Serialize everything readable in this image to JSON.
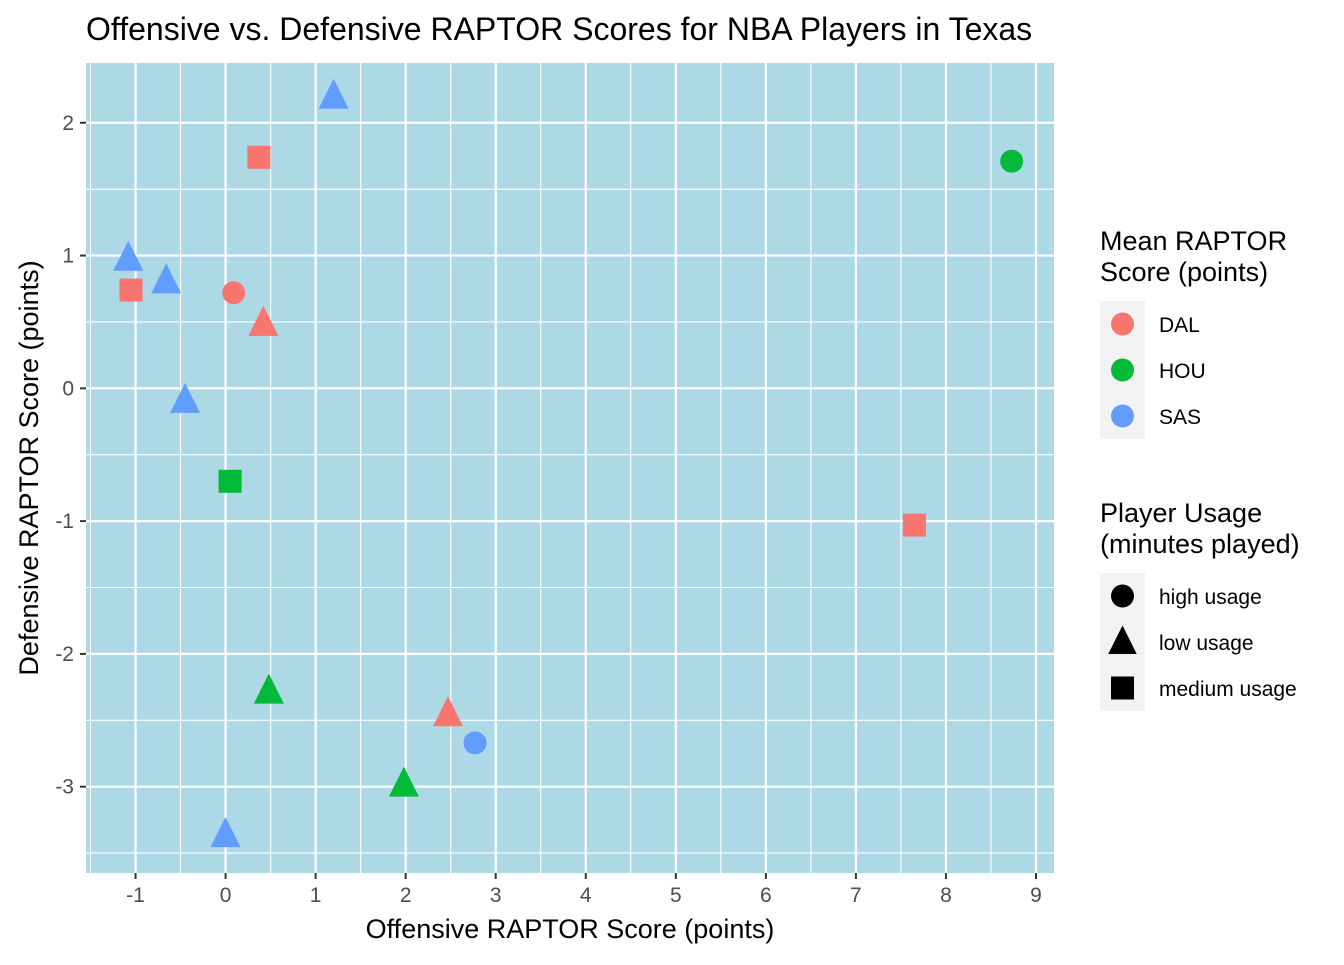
{
  "chart_data": {
    "type": "scatter",
    "title": "Offensive vs. Defensive RAPTOR Scores for NBA Players in Texas",
    "xlabel": "Offensive RAPTOR Score (points)",
    "ylabel": "Defensive RAPTOR Score (points)",
    "xlim": [
      -1.55,
      9.2
    ],
    "ylim": [
      -3.65,
      2.45
    ],
    "x_ticks": [
      -1,
      0,
      1,
      2,
      3,
      4,
      5,
      6,
      7,
      8,
      9
    ],
    "y_ticks": [
      -3,
      -2,
      -1,
      0,
      1,
      2
    ],
    "grid": true,
    "panel_background": "#add8e6",
    "legend_placement": "right",
    "color_legend": {
      "title": "Mean RAPTOR\nScore (points)",
      "entries": [
        {
          "label": "DAL",
          "color": "#f8766d"
        },
        {
          "label": "HOU",
          "color": "#00ba38"
        },
        {
          "label": "SAS",
          "color": "#619cff"
        }
      ]
    },
    "shape_legend": {
      "title": "Player Usage\n(minutes played)",
      "entries": [
        {
          "label": "high usage",
          "shape": "circle"
        },
        {
          "label": "low usage",
          "shape": "triangle"
        },
        {
          "label": "medium usage",
          "shape": "square"
        }
      ]
    },
    "points": [
      {
        "x": 1.2,
        "y": 2.2,
        "team": "SAS",
        "usage": "low usage"
      },
      {
        "x": 0.37,
        "y": 1.74,
        "team": "DAL",
        "usage": "medium usage"
      },
      {
        "x": 8.73,
        "y": 1.71,
        "team": "HOU",
        "usage": "high usage"
      },
      {
        "x": -1.08,
        "y": 0.98,
        "team": "SAS",
        "usage": "low usage"
      },
      {
        "x": -0.66,
        "y": 0.81,
        "team": "SAS",
        "usage": "low usage"
      },
      {
        "x": -1.05,
        "y": 0.74,
        "team": "DAL",
        "usage": "medium usage"
      },
      {
        "x": 0.09,
        "y": 0.72,
        "team": "DAL",
        "usage": "high usage"
      },
      {
        "x": 0.42,
        "y": 0.49,
        "team": "DAL",
        "usage": "low usage"
      },
      {
        "x": -0.45,
        "y": -0.09,
        "team": "SAS",
        "usage": "low usage"
      },
      {
        "x": 0.05,
        "y": -0.7,
        "team": "HOU",
        "usage": "medium usage"
      },
      {
        "x": 7.65,
        "y": -1.03,
        "team": "DAL",
        "usage": "medium usage"
      },
      {
        "x": 0.48,
        "y": -2.28,
        "team": "HOU",
        "usage": "low usage"
      },
      {
        "x": 2.47,
        "y": -2.45,
        "team": "DAL",
        "usage": "low usage"
      },
      {
        "x": 2.77,
        "y": -2.67,
        "team": "SAS",
        "usage": "high usage"
      },
      {
        "x": 1.98,
        "y": -2.98,
        "team": "HOU",
        "usage": "low usage"
      },
      {
        "x": 0.0,
        "y": -3.36,
        "team": "SAS",
        "usage": "low usage"
      }
    ]
  }
}
